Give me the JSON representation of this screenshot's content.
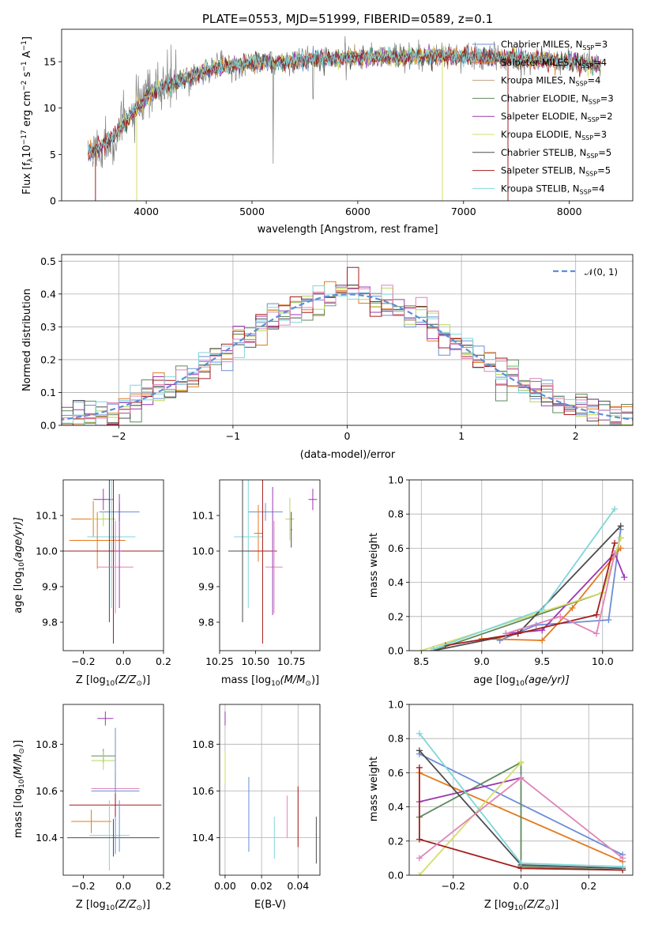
{
  "colors": {
    "c1": "#6a8ed6",
    "c2": "#e37a1f",
    "c3": "#5f8a5f",
    "c4": "#9b37b0",
    "c5": "#d4dd6a",
    "c6": "#4d4d4d",
    "c7": "#a61c1c",
    "c8": "#7fd6db",
    "c9": "#e084b8",
    "c10": "#b8d75a",
    "c11": "#7ab7d9",
    "c12": "#bfa07a"
  },
  "chart_data": [
    {
      "type": "line",
      "title": "PLATE=0553, MJD=51999, FIBERID=0589, z=0.1",
      "xlabel": "wavelength [Angstrom, rest frame]",
      "ylabel": "Flux [f",
      "ylabel_sub": "λ",
      "ylabel_tail": "10",
      "ylabel_sup": "−17",
      "ylabel_end": " erg cm",
      "ylabel_sup2": "−2",
      "ylabel_mid": " s",
      "ylabel_sup3": "−1",
      "ylabel_last": " A",
      "ylabel_sup4": "−1",
      "ylabel_close": "]",
      "xlim": [
        3200,
        8600
      ],
      "ylim": [
        0,
        18.5
      ],
      "xticks": [
        "4000",
        "5000",
        "6000",
        "7000",
        "8000"
      ],
      "xtick_values": [
        4000,
        5000,
        6000,
        7000,
        8000
      ],
      "yticks": [
        "0",
        "5",
        "10",
        "15"
      ],
      "ytick_values": [
        0,
        5,
        10,
        15
      ],
      "continuum": [
        [
          3450,
          5.2
        ],
        [
          3550,
          5.6
        ],
        [
          3700,
          7.0
        ],
        [
          3800,
          8.5
        ],
        [
          3950,
          10.5
        ],
        [
          4100,
          12.0
        ],
        [
          4300,
          12.8
        ],
        [
          4500,
          13.8
        ],
        [
          4700,
          14.5
        ],
        [
          5000,
          14.8
        ],
        [
          5300,
          15.0
        ],
        [
          5600,
          15.3
        ],
        [
          6000,
          15.5
        ],
        [
          6300,
          15.5
        ],
        [
          6600,
          15.6
        ],
        [
          7000,
          15.6
        ],
        [
          7400,
          15.4
        ],
        [
          8000,
          15.0
        ],
        [
          8300,
          14.6
        ]
      ],
      "series": [
        {
          "name": "Chabrier MILES",
          "nssp": "3"
        },
        {
          "name": "Salpeter MILES",
          "nssp": "4"
        },
        {
          "name": "Kroupa MILES",
          "nssp": "4"
        },
        {
          "name": "Chabrier ELODIE",
          "nssp": "3"
        },
        {
          "name": "Salpeter ELODIE",
          "nssp": "2"
        },
        {
          "name": "Kroupa ELODIE",
          "nssp": "3"
        },
        {
          "name": "Chabrier STELIB",
          "nssp": "5"
        },
        {
          "name": "Salpeter STELIB",
          "nssp": "5"
        },
        {
          "name": "Kroupa STELIB",
          "nssp": "4"
        }
      ],
      "legend_nssp_label": "N",
      "legend_nssp_sub": "SSP",
      "legend_placement": "right"
    },
    {
      "type": "histogram",
      "xlabel": "(data-model)/error",
      "ylabel": "Normed distribution",
      "xlim": [
        -2.5,
        2.5
      ],
      "ylim": [
        0,
        0.52
      ],
      "xticks": [
        "−2",
        "−1",
        "0",
        "1",
        "2"
      ],
      "xtick_values": [
        -2,
        -1,
        0,
        1,
        2
      ],
      "yticks": [
        "0.0",
        "0.1",
        "0.2",
        "0.3",
        "0.4",
        "0.5"
      ],
      "ytick_values": [
        0,
        0.1,
        0.2,
        0.3,
        0.4,
        0.5
      ],
      "bin_width": 0.1,
      "gaussian_label": "𝒩(0, 1)",
      "grid": true,
      "legend_placement": "top-right"
    },
    {
      "type": "scatter",
      "xlabel": "Z [log",
      "xlabel_sub": "10",
      "xlabel_tail": "(Z/Z",
      "xlabel_sub2": "⊙",
      "xlabel_close": ")]",
      "ylabel": "age  [log",
      "ylabel_sub": "10",
      "ylabel_tail": "(age/yr)]",
      "xlim": [
        -0.3,
        0.2
      ],
      "ylim": [
        9.72,
        10.2
      ],
      "xticks": [
        "−0.2",
        "0.0",
        "0.2"
      ],
      "xtick_values": [
        -0.2,
        0.0,
        0.2
      ],
      "yticks": [
        "9.8",
        "9.9",
        "10.0",
        "10.1"
      ],
      "ytick_values": [
        9.8,
        9.9,
        10.0,
        10.1
      ]
    },
    {
      "type": "scatter",
      "xlabel": "mass [log",
      "xlabel_sub": "10",
      "xlabel_tail": "(M/M",
      "xlabel_sub2": "⊙",
      "xlabel_close": ")]",
      "xlim": [
        10.25,
        10.95
      ],
      "ylim": [
        9.72,
        10.2
      ],
      "xticks": [
        "10.25",
        "10.50",
        "10.75"
      ],
      "xtick_values": [
        10.25,
        10.5,
        10.75
      ],
      "yticks": [
        "9.8",
        "9.9",
        "10.0",
        "10.1"
      ],
      "ytick_values": [
        9.8,
        9.9,
        10.0,
        10.1
      ]
    },
    {
      "type": "line",
      "xlabel": "age  [log",
      "xlabel_sub": "10",
      "xlabel_tail": "(age/yr)]",
      "ylabel": "mass weight",
      "xlim": [
        8.4,
        10.25
      ],
      "ylim": [
        0,
        1.0
      ],
      "xticks": [
        "8.5",
        "9.0",
        "9.5",
        "10.0"
      ],
      "xtick_values": [
        8.5,
        9.0,
        9.5,
        10.0
      ],
      "yticks": [
        "0.0",
        "0.2",
        "0.4",
        "0.6",
        "0.8",
        "1.0"
      ],
      "ytick_values": [
        0,
        0.2,
        0.4,
        0.6,
        0.8,
        1.0
      ],
      "grid": true,
      "series": [
        {
          "points": [
            [
              9.15,
              0.06
            ],
            [
              9.45,
              0.15
            ],
            [
              10.05,
              0.18
            ],
            [
              10.15,
              0.71
            ]
          ]
        },
        {
          "points": [
            [
              9.0,
              0.07
            ],
            [
              9.5,
              0.06
            ],
            [
              9.75,
              0.25
            ],
            [
              10.15,
              0.6
            ]
          ]
        },
        {
          "points": [
            [
              8.6,
              0.0
            ],
            [
              10.0,
              0.34
            ],
            [
              10.15,
              0.66
            ]
          ]
        },
        {
          "points": [
            [
              9.2,
              0.1
            ],
            [
              9.5,
              0.12
            ],
            [
              10.1,
              0.57
            ],
            [
              10.18,
              0.43
            ]
          ]
        },
        {
          "points": [
            [
              8.5,
              0.0
            ],
            [
              10.0,
              0.34
            ],
            [
              10.15,
              0.66
            ]
          ]
        },
        {
          "points": [
            [
              8.6,
              0.0
            ],
            [
              9.3,
              0.1
            ],
            [
              10.15,
              0.73
            ]
          ]
        },
        {
          "points": [
            [
              8.7,
              0.03
            ],
            [
              9.3,
              0.1
            ],
            [
              9.95,
              0.21
            ],
            [
              10.1,
              0.63
            ]
          ]
        },
        {
          "points": [
            [
              8.6,
              0.01
            ],
            [
              9.5,
              0.24
            ],
            [
              10.1,
              0.83
            ]
          ]
        },
        {
          "points": [
            [
              9.2,
              0.1
            ],
            [
              9.65,
              0.2
            ],
            [
              9.95,
              0.1
            ],
            [
              10.1,
              0.57
            ]
          ]
        }
      ]
    },
    {
      "type": "scatter",
      "xlabel": "Z [log",
      "xlabel_sub": "10",
      "xlabel_tail": "(Z/Z",
      "xlabel_sub2": "⊙",
      "xlabel_close": ")]",
      "ylabel": "mass [log",
      "ylabel_sub": "10",
      "ylabel_tail": "(M/M",
      "ylabel_sub2": "⊙",
      "ylabel_close": ")]",
      "xlim": [
        -0.3,
        0.2
      ],
      "ylim": [
        10.24,
        10.97
      ],
      "xticks": [
        "−0.2",
        "0.0",
        "0.2"
      ],
      "xtick_values": [
        -0.2,
        0.0,
        0.2
      ],
      "yticks": [
        "10.4",
        "10.6",
        "10.8"
      ],
      "ytick_values": [
        10.4,
        10.6,
        10.8
      ]
    },
    {
      "type": "scatter",
      "xlabel": "E(B-V)",
      "xlim": [
        -0.003,
        0.052
      ],
      "ylim": [
        10.24,
        10.97
      ],
      "xticks": [
        "0.00",
        "0.02",
        "0.04"
      ],
      "xtick_values": [
        0.0,
        0.02,
        0.04
      ],
      "yticks": [
        "10.4",
        "10.6",
        "10.8"
      ],
      "ytick_values": [
        10.4,
        10.6,
        10.8
      ],
      "grid": true
    },
    {
      "type": "line",
      "xlabel": "Z [log",
      "xlabel_sub": "10",
      "xlabel_tail": "(Z/Z",
      "xlabel_sub2": "⊙",
      "xlabel_close": ")]",
      "ylabel": "mass weight",
      "xlim": [
        -0.33,
        0.33
      ],
      "ylim": [
        0,
        1.0
      ],
      "xticks": [
        "−0.2",
        "0.0",
        "0.2"
      ],
      "xtick_values": [
        -0.2,
        0.0,
        0.2
      ],
      "yticks": [
        "0.0",
        "0.2",
        "0.4",
        "0.6",
        "0.8",
        "1.0"
      ],
      "ytick_values": [
        0,
        0.2,
        0.4,
        0.6,
        0.8,
        1.0
      ],
      "grid": true,
      "series": [
        {
          "points": [
            [
              -0.3,
              0.71
            ],
            [
              0.3,
              0.12
            ]
          ]
        },
        {
          "points": [
            [
              -0.3,
              0.6
            ],
            [
              0.3,
              0.08
            ]
          ]
        },
        {
          "points": [
            [
              -0.3,
              0.34
            ],
            [
              0.0,
              0.66
            ],
            [
              0.0,
              0.05
            ],
            [
              0.3,
              0.03
            ]
          ]
        },
        {
          "points": [
            [
              -0.3,
              0.43
            ],
            [
              0.0,
              0.57
            ]
          ]
        },
        {
          "points": [
            [
              -0.3,
              0.0
            ],
            [
              0.0,
              0.66
            ]
          ]
        },
        {
          "points": [
            [
              -0.3,
              0.73
            ],
            [
              0.0,
              0.06
            ],
            [
              0.3,
              0.04
            ]
          ]
        },
        {
          "points": [
            [
              -0.3,
              0.63
            ],
            [
              -0.3,
              0.21
            ],
            [
              0.0,
              0.04
            ],
            [
              0.3,
              0.03
            ]
          ]
        },
        {
          "points": [
            [
              -0.3,
              0.83
            ],
            [
              0.0,
              0.07
            ],
            [
              0.3,
              0.05
            ]
          ]
        },
        {
          "points": [
            [
              -0.3,
              0.1
            ],
            [
              0.0,
              0.57
            ],
            [
              0.3,
              0.1
            ]
          ]
        }
      ]
    }
  ],
  "errorbars_age_Z": [
    {
      "color": "c4",
      "x": -0.1,
      "xe": 0.05,
      "y": 10.145,
      "ye": 0.03
    },
    {
      "color": "c1",
      "x": -0.02,
      "xe": 0.1,
      "y": 10.11,
      "ye": 0.025
    },
    {
      "color": "c2",
      "x": -0.15,
      "xe": 0.11,
      "y": 10.09,
      "ye": 0.05
    },
    {
      "color": "c10",
      "x": -0.1,
      "xe": 0.06,
      "y": 10.09,
      "ye": 0.02
    },
    {
      "color": "c8",
      "x": -0.06,
      "xe": 0.12,
      "y": 10.04,
      "ye": 0.2
    },
    {
      "color": "c2",
      "x": -0.13,
      "xe": 0.14,
      "y": 10.03,
      "ye": 0.08
    },
    {
      "color": "c6",
      "x": -0.07,
      "xe": 0.27,
      "y": 10.0,
      "ye": 0.2
    },
    {
      "color": "c7",
      "x": -0.05,
      "xe": 0.23,
      "y": 10.0,
      "ye": 0.26
    },
    {
      "color": "c9",
      "x": -0.04,
      "xe": 0.09,
      "y": 9.955,
      "ye": 0.13
    },
    {
      "color": "c4",
      "x": -0.02,
      "xe": 0.01,
      "y": 10.0,
      "ye": 0.16
    }
  ],
  "errorbars_age_mass": [
    {
      "color": "c4",
      "x": 10.9,
      "xe": 0.03,
      "y": 10.145,
      "ye": 0.03
    },
    {
      "color": "c1",
      "x": 10.57,
      "xe": 0.12,
      "y": 10.11,
      "ye": 0.025
    },
    {
      "color": "c10",
      "x": 10.74,
      "xe": 0.03,
      "y": 10.09,
      "ye": 0.06
    },
    {
      "color": "c2",
      "x": 10.52,
      "xe": 0.03,
      "y": 10.05,
      "ye": 0.08
    },
    {
      "color": "c8",
      "x": 10.45,
      "xe": 0.1,
      "y": 10.04,
      "ye": 0.2
    },
    {
      "color": "c6",
      "x": 10.41,
      "xe": 0.1,
      "y": 10.0,
      "ye": 0.2
    },
    {
      "color": "c7",
      "x": 10.55,
      "xe": 0.1,
      "y": 10.0,
      "ye": 0.26
    },
    {
      "color": "c9",
      "x": 10.63,
      "xe": 0.06,
      "y": 9.955,
      "ye": 0.13
    },
    {
      "color": "c4",
      "x": 10.62,
      "xe": 0.005,
      "y": 10.0,
      "ye": 0.18
    },
    {
      "color": "c6",
      "x": 10.75,
      "xe": 0.005,
      "y": 10.06,
      "ye": 0.05
    }
  ],
  "errorbars_mass_Z": [
    {
      "color": "c4",
      "x": -0.09,
      "xe": 0.04,
      "y": 10.91,
      "ye": 0.03
    },
    {
      "color": "c3",
      "x": -0.1,
      "xe": 0.06,
      "y": 10.75,
      "ye": 0.03
    },
    {
      "color": "c10",
      "x": -0.1,
      "xe": 0.06,
      "y": 10.73,
      "ye": 0.04
    },
    {
      "color": "c9",
      "x": -0.04,
      "xe": 0.12,
      "y": 10.61,
      "ye": 0.07
    },
    {
      "color": "c1",
      "x": -0.04,
      "xe": 0.12,
      "y": 10.6,
      "ye": 0.27
    },
    {
      "color": "c7",
      "x": -0.04,
      "xe": 0.23,
      "y": 10.54,
      "ye": 0.05
    },
    {
      "color": "c2",
      "x": -0.16,
      "xe": 0.1,
      "y": 10.47,
      "ye": 0.05
    },
    {
      "color": "c8",
      "x": -0.07,
      "xe": 0.1,
      "y": 10.41,
      "ye": 0.15
    },
    {
      "color": "c6",
      "x": -0.05,
      "xe": 0.23,
      "y": 10.4,
      "ye": 0.08
    },
    {
      "color": "c1",
      "x": -0.02,
      "xe": 0.0,
      "y": 10.45,
      "ye": 0.11
    }
  ],
  "errorbars_mass_ebv": [
    {
      "color": "c4",
      "x": 0.0,
      "y": 10.91,
      "ye": 0.03
    },
    {
      "color": "c5",
      "x": 0.0,
      "y": 10.7,
      "ye": 0.07
    },
    {
      "color": "c1",
      "x": 0.013,
      "y": 10.5,
      "ye": 0.16
    },
    {
      "color": "c8",
      "x": 0.027,
      "y": 10.4,
      "ye": 0.09
    },
    {
      "color": "c9",
      "x": 0.034,
      "y": 10.49,
      "ye": 0.09
    },
    {
      "color": "c7",
      "x": 0.04,
      "y": 10.49,
      "ye": 0.13
    },
    {
      "color": "c6",
      "x": 0.05,
      "y": 10.39,
      "ye": 0.1
    }
  ]
}
